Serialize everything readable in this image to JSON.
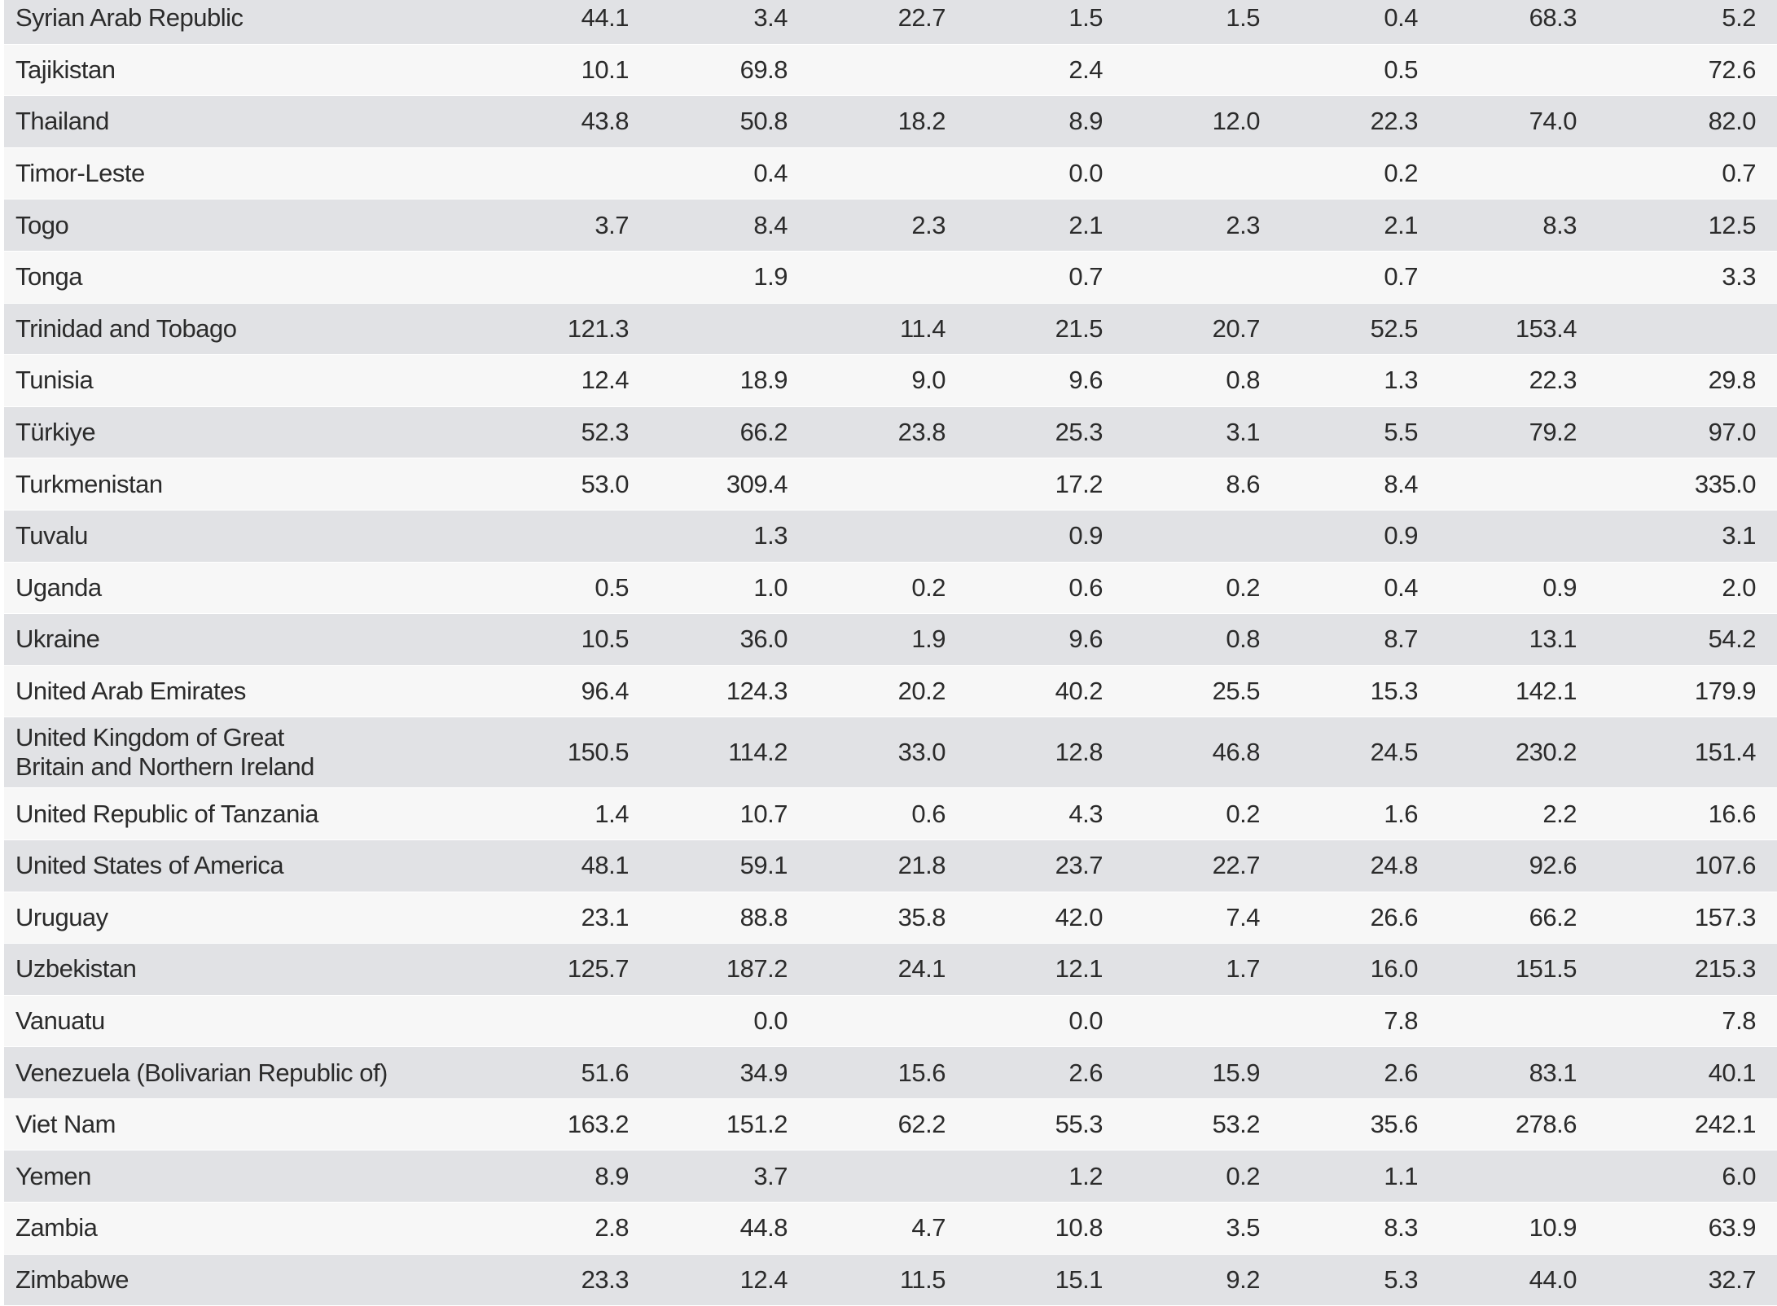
{
  "table": {
    "rows": [
      {
        "country": "Syrian Arab Republic",
        "values": [
          "44.1",
          "3.4",
          "22.7",
          "1.5",
          "1.5",
          "0.4",
          "68.3",
          "5.2"
        ]
      },
      {
        "country": "Tajikistan",
        "values": [
          "10.1",
          "69.8",
          "",
          "2.4",
          "",
          "0.5",
          "",
          "72.6"
        ]
      },
      {
        "country": "Thailand",
        "values": [
          "43.8",
          "50.8",
          "18.2",
          "8.9",
          "12.0",
          "22.3",
          "74.0",
          "82.0"
        ]
      },
      {
        "country": "Timor-Leste",
        "values": [
          "",
          "0.4",
          "",
          "0.0",
          "",
          "0.2",
          "",
          "0.7"
        ]
      },
      {
        "country": "Togo",
        "values": [
          "3.7",
          "8.4",
          "2.3",
          "2.1",
          "2.3",
          "2.1",
          "8.3",
          "12.5"
        ]
      },
      {
        "country": "Tonga",
        "values": [
          "",
          "1.9",
          "",
          "0.7",
          "",
          "0.7",
          "",
          "3.3"
        ]
      },
      {
        "country": "Trinidad and Tobago",
        "values": [
          "121.3",
          "",
          "11.4",
          "21.5",
          "20.7",
          "52.5",
          "153.4",
          ""
        ]
      },
      {
        "country": "Tunisia",
        "values": [
          "12.4",
          "18.9",
          "9.0",
          "9.6",
          "0.8",
          "1.3",
          "22.3",
          "29.8"
        ]
      },
      {
        "country": "Türkiye",
        "values": [
          "52.3",
          "66.2",
          "23.8",
          "25.3",
          "3.1",
          "5.5",
          "79.2",
          "97.0"
        ]
      },
      {
        "country": "Turkmenistan",
        "values": [
          "53.0",
          "309.4",
          "",
          "17.2",
          "8.6",
          "8.4",
          "",
          "335.0"
        ]
      },
      {
        "country": "Tuvalu",
        "values": [
          "",
          "1.3",
          "",
          "0.9",
          "",
          "0.9",
          "",
          "3.1"
        ]
      },
      {
        "country": "Uganda",
        "values": [
          "0.5",
          "1.0",
          "0.2",
          "0.6",
          "0.2",
          "0.4",
          "0.9",
          "2.0"
        ]
      },
      {
        "country": "Ukraine",
        "values": [
          "10.5",
          "36.0",
          "1.9",
          "9.6",
          "0.8",
          "8.7",
          "13.1",
          "54.2"
        ]
      },
      {
        "country": "United Arab Emirates",
        "values": [
          "96.4",
          "124.3",
          "20.2",
          "40.2",
          "25.5",
          "15.3",
          "142.1",
          "179.9"
        ]
      },
      {
        "country": "United Kingdom of Great Britain and Northern Ireland",
        "values": [
          "150.5",
          "114.2",
          "33.0",
          "12.8",
          "46.8",
          "24.5",
          "230.2",
          "151.4"
        ]
      },
      {
        "country": "United Republic of Tanzania",
        "values": [
          "1.4",
          "10.7",
          "0.6",
          "4.3",
          "0.2",
          "1.6",
          "2.2",
          "16.6"
        ]
      },
      {
        "country": "United States of America",
        "values": [
          "48.1",
          "59.1",
          "21.8",
          "23.7",
          "22.7",
          "24.8",
          "92.6",
          "107.6"
        ]
      },
      {
        "country": "Uruguay",
        "values": [
          "23.1",
          "88.8",
          "35.8",
          "42.0",
          "7.4",
          "26.6",
          "66.2",
          "157.3"
        ]
      },
      {
        "country": "Uzbekistan",
        "values": [
          "125.7",
          "187.2",
          "24.1",
          "12.1",
          "1.7",
          "16.0",
          "151.5",
          "215.3"
        ]
      },
      {
        "country": "Vanuatu",
        "values": [
          "",
          "0.0",
          "",
          "0.0",
          "",
          "7.8",
          "",
          "7.8"
        ]
      },
      {
        "country": "Venezuela (Bolivarian Republic of)",
        "values": [
          "51.6",
          "34.9",
          "15.6",
          "2.6",
          "15.9",
          "2.6",
          "83.1",
          "40.1"
        ]
      },
      {
        "country": "Viet Nam",
        "values": [
          "163.2",
          "151.2",
          "62.2",
          "55.3",
          "53.2",
          "35.6",
          "278.6",
          "242.1"
        ]
      },
      {
        "country": "Yemen",
        "values": [
          "8.9",
          "3.7",
          "",
          "1.2",
          "0.2",
          "1.1",
          "",
          "6.0"
        ]
      },
      {
        "country": "Zambia",
        "values": [
          "2.8",
          "44.8",
          "4.7",
          "10.8",
          "3.5",
          "8.3",
          "10.9",
          "63.9"
        ]
      },
      {
        "country": "Zimbabwe",
        "values": [
          "23.3",
          "12.4",
          "11.5",
          "15.1",
          "9.2",
          "5.3",
          "44.0",
          "32.7"
        ]
      }
    ]
  }
}
